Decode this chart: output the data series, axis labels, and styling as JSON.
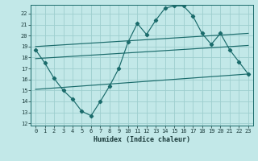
{
  "xlabel": "Humidex (Indice chaleur)",
  "bg_color": "#c2e8e8",
  "grid_color": "#9ecece",
  "line_color": "#1a6b6b",
  "xlim": [
    -0.5,
    23.5
  ],
  "ylim": [
    11.8,
    22.8
  ],
  "yticks": [
    12,
    13,
    14,
    15,
    16,
    17,
    18,
    19,
    20,
    21,
    22
  ],
  "xticks": [
    0,
    1,
    2,
    3,
    4,
    5,
    6,
    7,
    8,
    9,
    10,
    11,
    12,
    13,
    14,
    15,
    16,
    17,
    18,
    19,
    20,
    21,
    22,
    23
  ],
  "line1_x": [
    0,
    1,
    2,
    3,
    4,
    5,
    6,
    7,
    8,
    9,
    10,
    11,
    12,
    13,
    14,
    15,
    16,
    17,
    18,
    19,
    20,
    21,
    22,
    23
  ],
  "line1_y": [
    18.7,
    17.5,
    16.1,
    15.0,
    14.2,
    13.1,
    12.7,
    14.0,
    15.4,
    17.0,
    19.4,
    21.1,
    20.1,
    21.4,
    22.5,
    22.7,
    22.7,
    21.8,
    20.2,
    19.2,
    20.2,
    18.7,
    17.6,
    16.5
  ],
  "line2_x": [
    0,
    23
  ],
  "line2_y": [
    19.0,
    20.2
  ],
  "line3_x": [
    0,
    23
  ],
  "line3_y": [
    17.9,
    19.1
  ],
  "line4_x": [
    0,
    23
  ],
  "line4_y": [
    15.1,
    16.5
  ]
}
